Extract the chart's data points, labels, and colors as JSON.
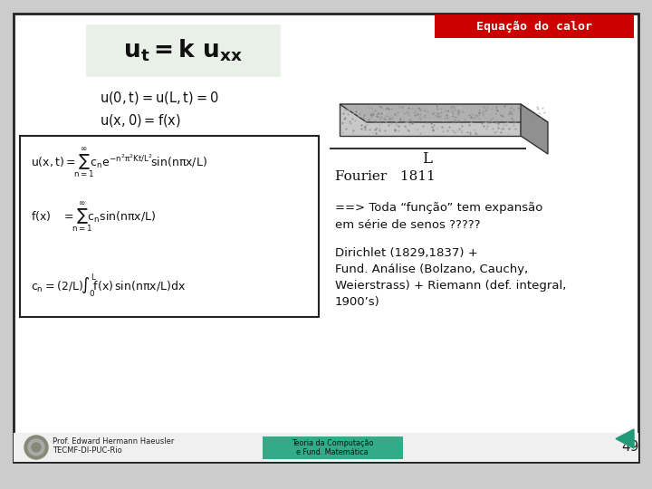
{
  "title_text": "Equação do calor",
  "title_bg": "#cc0000",
  "title_fg": "#ffffff",
  "eq_bg": "#e8f0e8",
  "slide_bg": "#ffffff",
  "outer_bg": "#cccccc",
  "border_color": "#222222",
  "footer_left1": "Prof. Edward Hermann Haeusler",
  "footer_left2": "TECMF-DI-PUC-Rio",
  "footer_center1": "Teoria da Computação",
  "footer_center2": "e Fund. Matemática",
  "footer_center_bg": "#33aa88",
  "page_number": "49",
  "teal_arrow_color": "#229977",
  "text_color": "#111111"
}
